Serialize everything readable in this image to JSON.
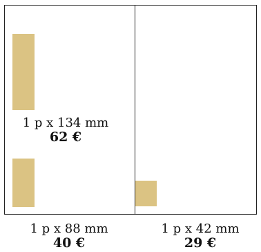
{
  "block_color": "#dbc383",
  "options": [
    {
      "size": "1 p x 134 mm",
      "price": "62 €"
    },
    {
      "size": "1 p x 88 mm",
      "price": "40 €"
    },
    {
      "size": "1 p x 42 mm",
      "price": "29 €"
    }
  ]
}
